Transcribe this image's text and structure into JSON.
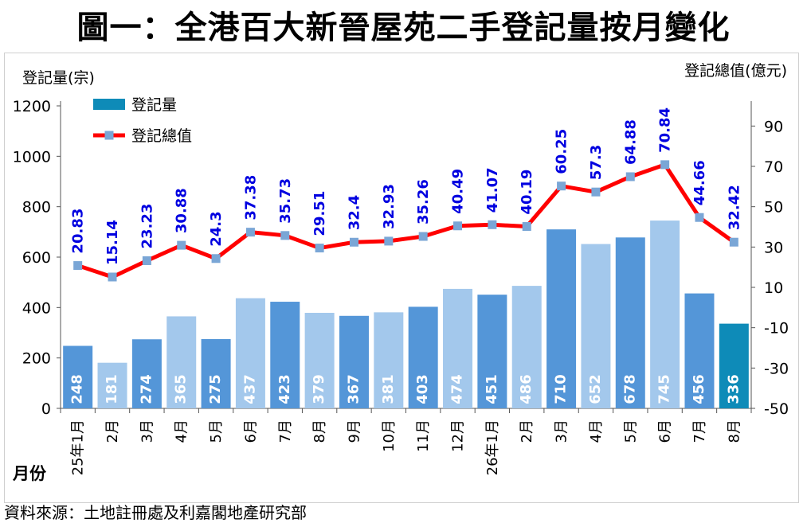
{
  "title": "圖一：全港百大新晉屋苑二手登記量按月變化",
  "source": "資料來源：土地註冊處及利嘉閣地產研究部",
  "chart_data": {
    "type": "bar",
    "categories": [
      "25年1月",
      "2月",
      "3月",
      "4月",
      "5月",
      "6月",
      "7月",
      "8月",
      "9月",
      "10月",
      "11月",
      "12月",
      "26年1月",
      "2月",
      "3月",
      "4月",
      "5月",
      "6月",
      "7月",
      "8月"
    ],
    "xlabel": "月份",
    "y_left_label": "登記量(宗)",
    "y_right_label": "登記總值(億元)",
    "y_left_ticks": [
      "0",
      "200",
      "400",
      "600",
      "800",
      "1000",
      "1200"
    ],
    "y_right_ticks": [
      "-50",
      "-30",
      "-10",
      "10",
      "30",
      "50",
      "70",
      "90"
    ],
    "ylim_left": [
      0,
      1200
    ],
    "ylim_right": [
      -50,
      100
    ],
    "legend": {
      "position": "top-left",
      "bar_label": "登記量",
      "line_label": "登記總值"
    },
    "series": [
      {
        "name": "登記量",
        "type": "bar",
        "axis": "left",
        "values": [
          248,
          181,
          274,
          365,
          275,
          437,
          423,
          379,
          367,
          381,
          403,
          474,
          451,
          486,
          710,
          652,
          678,
          745,
          456,
          336
        ]
      },
      {
        "name": "登記總值",
        "type": "line",
        "axis": "right",
        "values": [
          20.83,
          15.14,
          23.23,
          30.88,
          24.3,
          37.38,
          35.73,
          29.51,
          32.4,
          32.93,
          35.26,
          40.49,
          41.07,
          40.19,
          60.25,
          57.3,
          64.88,
          70.84,
          44.66,
          32.42
        ]
      }
    ],
    "colors": {
      "bar_dark": "#5496d8",
      "bar_light": "#a3c8ec",
      "bar_latest": "#0e8bb8",
      "line": "#ff0000",
      "marker": "#7aa6d6",
      "value_label": "#0000e0"
    },
    "bar_shades": [
      "dark",
      "light",
      "dark",
      "light",
      "dark",
      "light",
      "dark",
      "light",
      "dark",
      "light",
      "dark",
      "light",
      "dark",
      "light",
      "dark",
      "light",
      "dark",
      "light",
      "dark",
      "latest"
    ]
  }
}
